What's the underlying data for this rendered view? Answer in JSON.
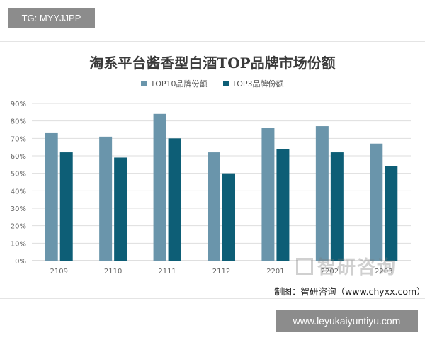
{
  "top_tag": "TG: MYYJJPP",
  "bottom_url": "www.leyukaiyuntiyu.com",
  "source_text": "制图：智研咨询（www.chyxx.com）",
  "watermark_text": "智研咨询",
  "colors": {
    "top10": "#6a95ab",
    "top3": "#0d5e76",
    "grid": "#dedede",
    "axis_text": "#666666"
  },
  "chart_data": {
    "type": "bar",
    "title": "淘系平台酱香型白酒TOP品牌市场份额",
    "categories": [
      "2109",
      "2110",
      "2111",
      "2112",
      "2201",
      "2202",
      "2203"
    ],
    "series": [
      {
        "name": "TOP10品牌份额",
        "values": [
          73,
          71,
          84,
          62,
          76,
          77,
          67
        ]
      },
      {
        "name": "TOP3品牌份额",
        "values": [
          62,
          59,
          70,
          50,
          64,
          62,
          54
        ]
      }
    ],
    "y_ticks": [
      "0%",
      "10%",
      "20%",
      "30%",
      "40%",
      "50%",
      "60%",
      "70%",
      "80%",
      "90%"
    ],
    "ylim": [
      0,
      90
    ],
    "legend_position": "top-center",
    "grid": true
  }
}
